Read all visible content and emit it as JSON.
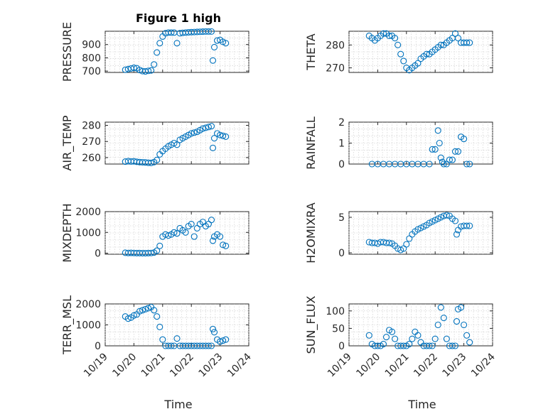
{
  "figure": {
    "title": "Figure 1 high",
    "marker_color": "#0072bd"
  },
  "chart_data": [
    {
      "type": "scatter",
      "ylabel": "PRESSURE",
      "ylim": [
        690,
        1000
      ],
      "yticks": [
        700,
        800,
        900
      ],
      "xlim": [
        0,
        5
      ],
      "x": [
        0.7,
        0.8,
        0.9,
        1.0,
        1.1,
        1.2,
        1.3,
        1.4,
        1.5,
        1.6,
        1.7,
        1.8,
        1.9,
        2.0,
        2.1,
        2.2,
        2.3,
        2.4,
        2.5,
        2.6,
        2.7,
        2.8,
        2.9,
        3.0,
        3.1,
        3.2,
        3.3,
        3.4,
        3.5,
        3.6,
        3.7,
        3.75,
        3.8,
        3.9,
        4.0,
        4.1,
        4.2
      ],
      "y": [
        710,
        715,
        720,
        725,
        722,
        708,
        700,
        698,
        702,
        705,
        750,
        840,
        910,
        960,
        985,
        990,
        990,
        990,
        910,
        985,
        988,
        990,
        992,
        993,
        994,
        995,
        996,
        997,
        998,
        998,
        998,
        780,
        880,
        930,
        935,
        920,
        910
      ]
    },
    {
      "type": "scatter",
      "ylabel": "THETA",
      "ylim": [
        268,
        286
      ],
      "yticks": [
        270,
        280
      ],
      "xlim": [
        0,
        5
      ],
      "x": [
        0.7,
        0.8,
        0.9,
        1.0,
        1.1,
        1.2,
        1.3,
        1.4,
        1.5,
        1.6,
        1.7,
        1.8,
        1.9,
        2.0,
        2.1,
        2.2,
        2.3,
        2.4,
        2.5,
        2.6,
        2.7,
        2.8,
        2.9,
        3.0,
        3.1,
        3.2,
        3.3,
        3.4,
        3.5,
        3.6,
        3.7,
        3.8,
        3.9,
        4.0,
        4.1,
        4.2
      ],
      "y": [
        284,
        283,
        282,
        283,
        284,
        285,
        285,
        284,
        284,
        283,
        280,
        276,
        273,
        270,
        269,
        270,
        271,
        272,
        274,
        275,
        276,
        276,
        277,
        278,
        279,
        280,
        280,
        281,
        282,
        283,
        285,
        283,
        281,
        281,
        281,
        281
      ]
    },
    {
      "type": "scatter",
      "ylabel": "AIR_TEMP",
      "ylim": [
        256,
        282
      ],
      "yticks": [
        260,
        270,
        280
      ],
      "xlim": [
        0,
        5
      ],
      "x": [
        0.7,
        0.8,
        0.9,
        1.0,
        1.1,
        1.2,
        1.3,
        1.4,
        1.5,
        1.6,
        1.7,
        1.8,
        1.9,
        2.0,
        2.1,
        2.2,
        2.3,
        2.4,
        2.5,
        2.6,
        2.7,
        2.8,
        2.9,
        3.0,
        3.1,
        3.2,
        3.3,
        3.4,
        3.5,
        3.6,
        3.7,
        3.75,
        3.8,
        3.9,
        4.0,
        4.1,
        4.2
      ],
      "y": [
        257.5,
        257.8,
        257.6,
        257.7,
        257.4,
        257.2,
        257.1,
        257.0,
        256.8,
        256.7,
        257.2,
        258.5,
        262,
        264,
        265.5,
        267,
        268,
        269,
        268,
        271,
        272,
        273,
        274,
        275,
        275.5,
        276,
        277,
        278,
        278.5,
        279,
        279.5,
        266,
        272,
        275,
        274,
        273.5,
        273
      ]
    },
    {
      "type": "scatter",
      "ylabel": "RAINFALL",
      "ylim": [
        0,
        2
      ],
      "yticks": [
        0,
        1,
        2
      ],
      "xlim": [
        0,
        5
      ],
      "x": [
        0.8,
        1.0,
        1.2,
        1.4,
        1.6,
        1.8,
        2.0,
        2.2,
        2.4,
        2.6,
        2.8,
        2.9,
        3.0,
        3.1,
        3.15,
        3.2,
        3.25,
        3.3,
        3.4,
        3.5,
        3.6,
        3.7,
        3.8,
        3.9,
        4.0,
        4.1,
        4.2
      ],
      "y": [
        0,
        0,
        0,
        0,
        0,
        0,
        0,
        0,
        0,
        0,
        0,
        0.7,
        0.7,
        1.6,
        1.0,
        0.3,
        0.1,
        0,
        0,
        0.2,
        0.2,
        0.6,
        0.6,
        1.3,
        1.2,
        0,
        0
      ]
    },
    {
      "type": "scatter",
      "ylabel": "MIXDEPTH",
      "ylim": [
        -50,
        2000
      ],
      "yticks": [
        0,
        1000,
        2000
      ],
      "xlim": [
        0,
        5
      ],
      "x": [
        0.7,
        0.8,
        0.9,
        1.0,
        1.1,
        1.2,
        1.3,
        1.4,
        1.5,
        1.6,
        1.7,
        1.8,
        1.9,
        2.0,
        2.1,
        2.2,
        2.3,
        2.4,
        2.5,
        2.6,
        2.7,
        2.8,
        2.9,
        3.0,
        3.1,
        3.2,
        3.3,
        3.4,
        3.5,
        3.6,
        3.7,
        3.75,
        3.8,
        3.9,
        4.0,
        4.1,
        4.2
      ],
      "y": [
        20,
        10,
        15,
        10,
        5,
        5,
        0,
        0,
        5,
        10,
        30,
        120,
        350,
        800,
        900,
        850,
        900,
        1000,
        950,
        1200,
        1100,
        1000,
        1300,
        1400,
        800,
        1200,
        1400,
        1500,
        1300,
        1400,
        1600,
        600,
        800,
        900,
        800,
        400,
        350
      ]
    },
    {
      "type": "scatter",
      "ylabel": "H2OMIXRA",
      "ylim": [
        -0.2,
        5.8
      ],
      "yticks": [
        0,
        5
      ],
      "xlim": [
        0,
        5
      ],
      "x": [
        0.7,
        0.8,
        0.9,
        1.0,
        1.1,
        1.2,
        1.3,
        1.4,
        1.5,
        1.6,
        1.7,
        1.8,
        1.9,
        2.0,
        2.1,
        2.2,
        2.3,
        2.4,
        2.5,
        2.6,
        2.7,
        2.8,
        2.9,
        3.0,
        3.1,
        3.2,
        3.3,
        3.4,
        3.5,
        3.6,
        3.7,
        3.75,
        3.8,
        3.9,
        4.0,
        4.1,
        4.2
      ],
      "y": [
        1.5,
        1.4,
        1.4,
        1.3,
        1.5,
        1.5,
        1.4,
        1.4,
        1.3,
        1.0,
        0.6,
        0.4,
        0.6,
        1.2,
        2.0,
        2.6,
        3.0,
        3.3,
        3.5,
        3.7,
        3.9,
        4.2,
        4.4,
        4.6,
        4.8,
        5.0,
        5.2,
        5.3,
        5.2,
        4.8,
        4.5,
        2.6,
        3.2,
        3.7,
        3.8,
        3.8,
        3.8
      ]
    },
    {
      "type": "scatter",
      "ylabel": "TERR_MSL",
      "ylim": [
        0,
        2000
      ],
      "yticks": [
        0,
        1000,
        2000
      ],
      "xlim": [
        0,
        5
      ],
      "x": [
        0.7,
        0.8,
        0.9,
        1.0,
        1.1,
        1.2,
        1.3,
        1.4,
        1.5,
        1.6,
        1.7,
        1.8,
        1.9,
        2.0,
        2.1,
        2.2,
        2.3,
        2.4,
        2.5,
        2.6,
        2.7,
        2.8,
        2.9,
        3.0,
        3.1,
        3.2,
        3.3,
        3.4,
        3.5,
        3.6,
        3.7,
        3.75,
        3.8,
        3.9,
        4.0,
        4.1,
        4.2
      ],
      "y": [
        1400,
        1300,
        1350,
        1450,
        1500,
        1650,
        1700,
        1750,
        1800,
        1850,
        1700,
        1400,
        900,
        300,
        0,
        0,
        0,
        0,
        350,
        0,
        0,
        0,
        0,
        0,
        0,
        0,
        0,
        0,
        0,
        0,
        0,
        800,
        650,
        300,
        200,
        250,
        300
      ]
    },
    {
      "type": "scatter",
      "ylabel": "SUN_FLUX",
      "ylim": [
        0,
        120
      ],
      "yticks": [
        0,
        50,
        100
      ],
      "xlim": [
        0,
        5
      ],
      "xticks": [
        "10/19",
        "10/20",
        "10/21",
        "10/22",
        "10/23",
        "10/24"
      ],
      "xlabel": "Time",
      "x": [
        0.7,
        0.8,
        0.9,
        1.0,
        1.1,
        1.2,
        1.3,
        1.4,
        1.5,
        1.6,
        1.7,
        1.8,
        1.9,
        2.0,
        2.1,
        2.2,
        2.3,
        2.4,
        2.5,
        2.6,
        2.7,
        2.8,
        2.9,
        3.0,
        3.1,
        3.2,
        3.3,
        3.4,
        3.5,
        3.6,
        3.7,
        3.75,
        3.8,
        3.9,
        4.0,
        4.1,
        4.2
      ],
      "y": [
        30,
        5,
        0,
        0,
        0,
        5,
        25,
        45,
        40,
        20,
        0,
        0,
        0,
        0,
        5,
        20,
        40,
        30,
        10,
        0,
        0,
        0,
        0,
        20,
        60,
        110,
        80,
        20,
        0,
        0,
        0,
        70,
        105,
        110,
        60,
        30,
        10
      ]
    }
  ],
  "shared_x": {
    "xticks": [
      "10/19",
      "10/20",
      "10/21",
      "10/22",
      "10/23",
      "10/24"
    ],
    "xlabel": "Time"
  }
}
